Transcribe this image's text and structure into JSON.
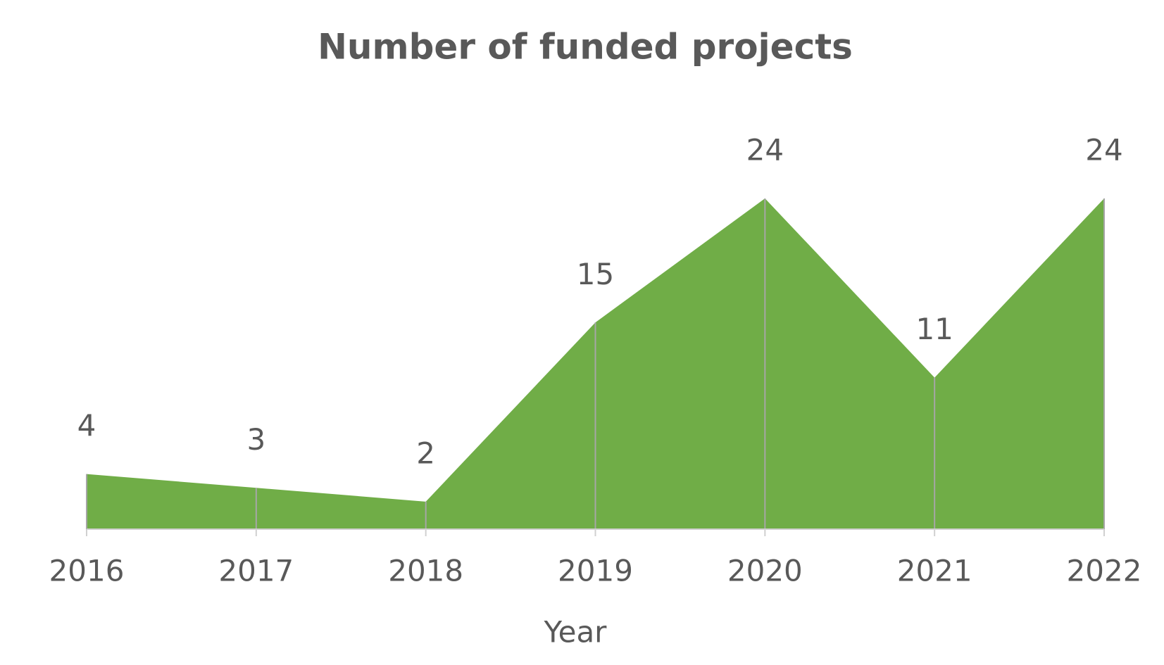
{
  "chart_data": {
    "type": "area",
    "title": "Number of funded projects",
    "x_label": "Year",
    "categories": [
      "2016",
      "2017",
      "2018",
      "2019",
      "2020",
      "2021",
      "2022"
    ],
    "values": [
      4,
      3,
      2,
      15,
      24,
      11,
      24
    ],
    "color": "#70ad47"
  }
}
